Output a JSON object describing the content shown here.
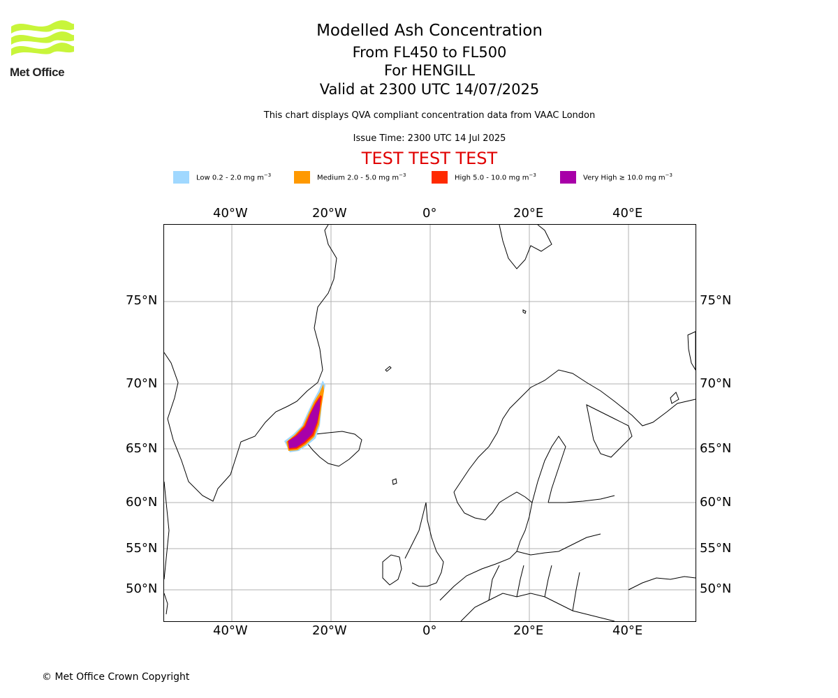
{
  "header": {
    "logo_text": "Met Office",
    "title": "Modelled Ash Concentration",
    "levels": "From FL450 to FL500",
    "volcano": "For HENGILL",
    "valid": "Valid at 2300 UTC 14/07/2025",
    "disclaimer": "This chart displays QVA compliant concentration data from VAAC London",
    "issue_time": "Issue Time: 2300 UTC 14 Jul 2025",
    "test_banner": "TEST TEST TEST"
  },
  "legend": [
    {
      "label_prefix": "Low 0.2 - 2.0 mg m",
      "sup": "−3",
      "color": "#a0d8ff"
    },
    {
      "label_prefix": "Medium 2.0 - 5.0 mg m",
      "sup": "−3",
      "color": "#ff9900"
    },
    {
      "label_prefix": "High 5.0 - 10.0 mg m",
      "sup": "−3",
      "color": "#ff2a00"
    },
    {
      "label_prefix": "Very High  ≥  10.0 mg m",
      "sup": "−3",
      "color": "#a800a8"
    }
  ],
  "axes": {
    "longitude_labels": [
      "40°W",
      "20°W",
      "0°",
      "20°E",
      "40°E"
    ],
    "latitude_labels": [
      "75°N",
      "70°N",
      "65°N",
      "60°N",
      "55°N",
      "50°N"
    ]
  },
  "footer": {
    "copyright": "© Met Office Crown Copyright"
  }
}
